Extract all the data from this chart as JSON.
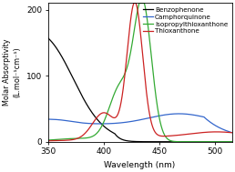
{
  "title": "",
  "xlabel": "Wavelength (nm)",
  "ylabel": "Molar Absorptivity\n(L.mol⁻¹cm⁻¹)",
  "xlim": [
    350,
    515
  ],
  "ylim": [
    0,
    210
  ],
  "yticks": [
    0,
    100,
    200
  ],
  "xticks": [
    350,
    400,
    450,
    500
  ],
  "legend_entries": [
    "Benzophenone",
    "Camphorquinone",
    "Isopropylthioxanthone",
    "Thioxanthone"
  ],
  "line_colors": [
    "black",
    "#3366cc",
    "#33aa33",
    "#cc2222"
  ],
  "background_color": "#ffffff"
}
